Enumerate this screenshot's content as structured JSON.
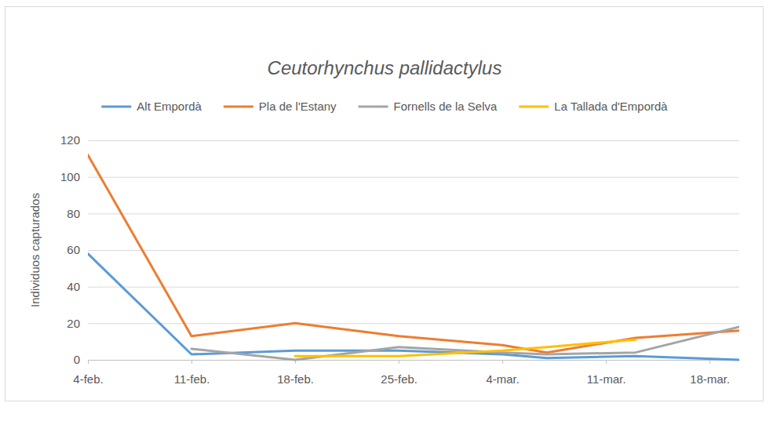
{
  "chart_data": {
    "type": "line",
    "title": "Ceutorhynchus pallidactylus",
    "y_label": "Individuos capturados",
    "x": [
      35,
      42,
      49,
      56,
      63,
      66,
      72,
      79
    ],
    "xlim": [
      35,
      79
    ],
    "xticks": [
      {
        "value": 35,
        "label": "4-feb."
      },
      {
        "value": 42,
        "label": "11-feb."
      },
      {
        "value": 49,
        "label": "18-feb."
      },
      {
        "value": 56,
        "label": "25-feb."
      },
      {
        "value": 63,
        "label": "4-mar."
      },
      {
        "value": 70,
        "label": "11-mar."
      },
      {
        "value": 77,
        "label": "18-mar."
      }
    ],
    "ylim": [
      0,
      120
    ],
    "yticks": [
      0,
      20,
      40,
      60,
      80,
      100,
      120
    ],
    "grid": true,
    "legend": "top",
    "series": [
      {
        "name": "Alt Empordà",
        "color": "#5b9bd5",
        "values": [
          58,
          3,
          5,
          5,
          3,
          1,
          2,
          0
        ]
      },
      {
        "name": "Pla de l'Estany",
        "color": "#ed7d31",
        "values": [
          112,
          13,
          20,
          13,
          8,
          4,
          12,
          16
        ]
      },
      {
        "name": "Fornells de la Selva",
        "color": "#a5a5a5",
        "values": [
          null,
          6,
          0,
          7,
          4,
          3,
          4,
          18
        ]
      },
      {
        "name": "La Tallada d'Empordà",
        "color": "#ffc000",
        "values": [
          null,
          null,
          2,
          2,
          5,
          7,
          11,
          null
        ]
      }
    ]
  }
}
